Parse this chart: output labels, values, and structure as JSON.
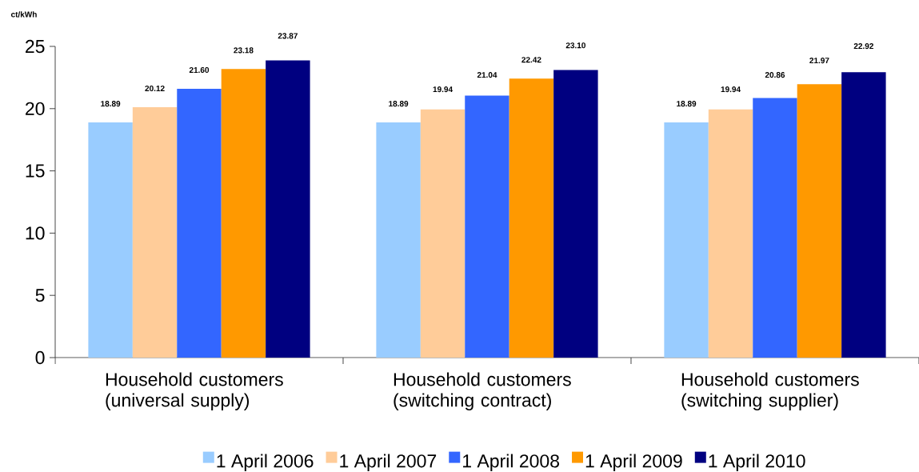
{
  "chart_data": {
    "type": "bar",
    "ylabel": "ct/kWh",
    "categories": [
      "Household customers (universal supply)",
      "Household customers (switching contract)",
      "Household customers (switching supplier)"
    ],
    "series": [
      {
        "name": "1 April 2006",
        "color": "#99ccff",
        "values": [
          18.89,
          18.89,
          18.89
        ],
        "value_labels": [
          "18.89",
          "18.89",
          "18.89"
        ]
      },
      {
        "name": "1 April 2007",
        "color": "#ffcc99",
        "values": [
          20.12,
          19.94,
          19.94
        ],
        "value_labels": [
          "20.12",
          "19.94",
          "19.94"
        ]
      },
      {
        "name": "1 April 2008",
        "color": "#3366ff",
        "values": [
          21.6,
          21.04,
          20.86
        ],
        "value_labels": [
          "21.60",
          "21.04",
          "20.86"
        ]
      },
      {
        "name": "1 April 2009",
        "color": "#ff9900",
        "values": [
          23.18,
          22.42,
          21.97
        ],
        "value_labels": [
          "23.18",
          "22.42",
          "21.97"
        ]
      },
      {
        "name": "1 April 2010",
        "color": "#000080",
        "values": [
          23.87,
          23.1,
          22.92
        ],
        "value_labels": [
          "23.87",
          "23.10",
          "22.92"
        ]
      }
    ],
    "ylim": [
      0,
      25
    ],
    "yticks": [
      0,
      5,
      10,
      15,
      20,
      25
    ],
    "legend": "bottom"
  }
}
